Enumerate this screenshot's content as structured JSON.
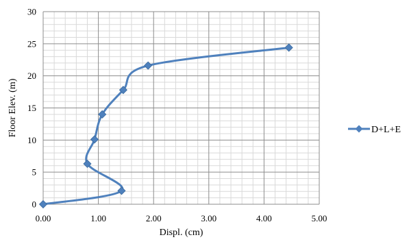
{
  "chart_data": {
    "type": "line",
    "xlabel": "Displ. (cm)",
    "ylabel": "Floor Elev. (m)",
    "xlim": [
      0,
      5
    ],
    "ylim": [
      0,
      30
    ],
    "x_ticks": [
      "0.00",
      "1.00",
      "2.00",
      "3.00",
      "4.00",
      "5.00"
    ],
    "y_ticks": [
      "0",
      "5",
      "10",
      "15",
      "20",
      "25",
      "30"
    ],
    "grid": "major and minor",
    "legend_position": "right",
    "series": [
      {
        "name": "D+L+E",
        "color": "#4F81BD",
        "marker": "diamond",
        "smooth": true,
        "points": [
          {
            "x": 0.0,
            "y": 0.0
          },
          {
            "x": 1.42,
            "y": 2.1
          },
          {
            "x": 0.8,
            "y": 6.3
          },
          {
            "x": 0.93,
            "y": 10.1
          },
          {
            "x": 1.07,
            "y": 14.0
          },
          {
            "x": 1.45,
            "y": 17.8
          },
          {
            "x": 1.9,
            "y": 21.6
          },
          {
            "x": 4.45,
            "y": 24.4
          }
        ]
      }
    ]
  }
}
